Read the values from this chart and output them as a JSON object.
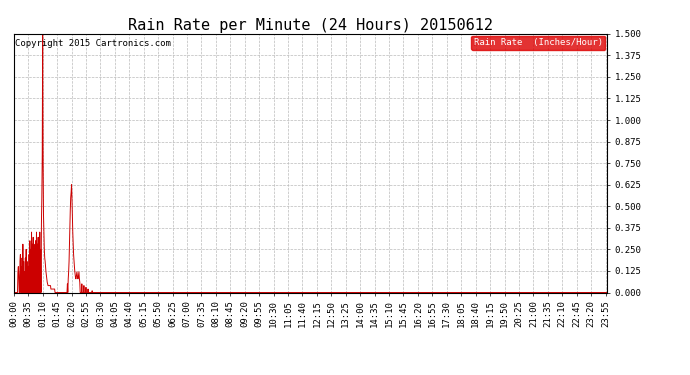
{
  "title": "Rain Rate per Minute (24 Hours) 20150612",
  "copyright": "Copyright 2015 Cartronics.com",
  "legend_label": "Rain Rate  (Inches/Hour)",
  "legend_bg": "#dd0000",
  "legend_fg": "#ffffff",
  "line_color": "#cc0000",
  "background_color": "#ffffff",
  "grid_color": "#bbbbbb",
  "ylim": [
    0.0,
    1.5
  ],
  "yticks": [
    0.0,
    0.125,
    0.25,
    0.375,
    0.5,
    0.625,
    0.75,
    0.875,
    1.0,
    1.125,
    1.25,
    1.375,
    1.5
  ],
  "ytick_labels": [
    "0.000",
    "0.125",
    "0.250",
    "0.375",
    "0.500",
    "0.625",
    "0.750",
    "0.875",
    "1.000",
    "1.125",
    "1.250",
    "1.375",
    "1.500"
  ],
  "total_minutes": 1440,
  "xtick_interval": 35,
  "title_fontsize": 11,
  "axis_fontsize": 6.5,
  "copyright_fontsize": 6.5
}
